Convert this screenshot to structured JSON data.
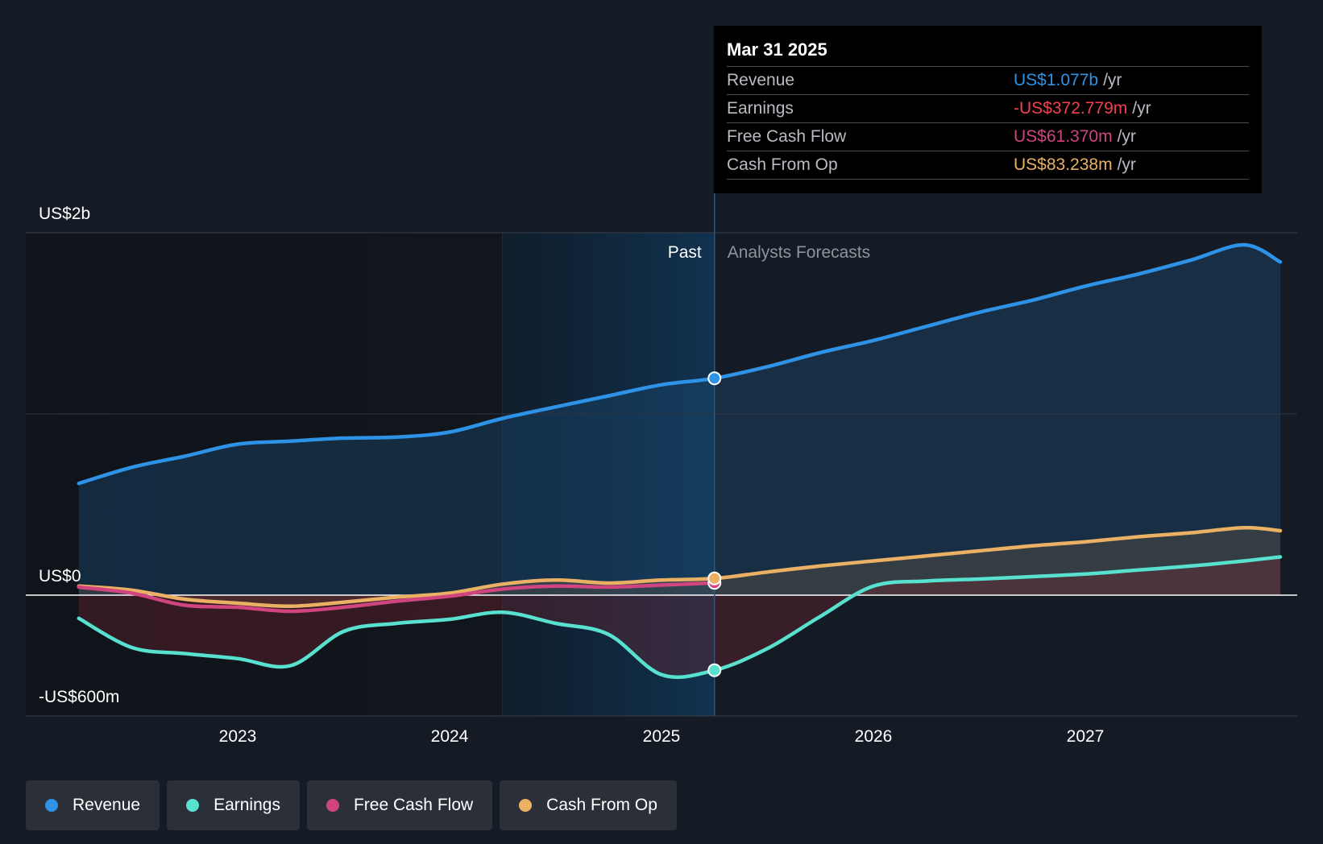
{
  "colors": {
    "background": "#151b24",
    "revenue": "#2e93e6",
    "earnings": "#58e1cf",
    "free_cash_flow": "#d0457f",
    "cash_from_op": "#eab064",
    "forecast_text": "#8e949c",
    "earnings_tooltip": "#f2404f"
  },
  "tooltip": {
    "date": "Mar 31 2025",
    "rows": [
      {
        "name": "Revenue",
        "value": "US$1.077b",
        "unit": "/yr",
        "color": "#2e93e6"
      },
      {
        "name": "Earnings",
        "value": "-US$372.779m",
        "unit": "/yr",
        "color": "#f2404f"
      },
      {
        "name": "Free Cash Flow",
        "value": "US$61.370m",
        "unit": "/yr",
        "color": "#d0457f"
      },
      {
        "name": "Cash From Op",
        "value": "US$83.238m",
        "unit": "/yr",
        "color": "#eab064"
      }
    ]
  },
  "legend": [
    {
      "label": "Revenue",
      "color": "#2e93e6"
    },
    {
      "label": "Earnings",
      "color": "#58e1cf"
    },
    {
      "label": "Free Cash Flow",
      "color": "#d0457f"
    },
    {
      "label": "Cash From Op",
      "color": "#eab064"
    }
  ],
  "chart_data": {
    "type": "line",
    "y_axis_labels": {
      "top": "US$2b",
      "zero": "US$0",
      "bottom": "-US$600m"
    },
    "x_tick_labels": [
      "2023",
      "2024",
      "2025",
      "2026",
      "2027"
    ],
    "x_ticks": [
      2023,
      2024,
      2025,
      2026,
      2027
    ],
    "xlim": [
      2022.0,
      2028.0
    ],
    "ylim": [
      -600,
      1800
    ],
    "past_label": "Past",
    "forecast_label": "Analysts Forecasts",
    "past_end": 2025.25,
    "highlight_start": 2024.25,
    "grid": true,
    "series": [
      {
        "name": "Revenue",
        "key": "revenue",
        "color": "#2e93e6",
        "points": [
          [
            2022.25,
            555
          ],
          [
            2022.5,
            635
          ],
          [
            2022.75,
            690
          ],
          [
            2023.0,
            750
          ],
          [
            2023.25,
            765
          ],
          [
            2023.5,
            780
          ],
          [
            2023.75,
            785
          ],
          [
            2024.0,
            810
          ],
          [
            2024.25,
            878
          ],
          [
            2024.5,
            935
          ],
          [
            2024.75,
            990
          ],
          [
            2025.0,
            1045
          ],
          [
            2025.25,
            1077
          ],
          [
            2025.5,
            1135
          ],
          [
            2025.75,
            1205
          ],
          [
            2026.0,
            1265
          ],
          [
            2026.25,
            1335
          ],
          [
            2026.5,
            1405
          ],
          [
            2026.75,
            1465
          ],
          [
            2027.0,
            1535
          ],
          [
            2027.25,
            1595
          ],
          [
            2027.5,
            1665
          ],
          [
            2027.75,
            1740
          ],
          [
            2028.0,
            1655
          ]
        ]
      },
      {
        "name": "Earnings",
        "key": "earnings",
        "color": "#58e1cf",
        "points": [
          [
            2022.25,
            -115
          ],
          [
            2022.5,
            -260
          ],
          [
            2022.75,
            -290
          ],
          [
            2023.0,
            -315
          ],
          [
            2023.25,
            -350
          ],
          [
            2023.5,
            -180
          ],
          [
            2023.75,
            -140
          ],
          [
            2024.0,
            -120
          ],
          [
            2024.25,
            -85
          ],
          [
            2024.5,
            -140
          ],
          [
            2024.75,
            -195
          ],
          [
            2025.0,
            -395
          ],
          [
            2025.25,
            -373
          ],
          [
            2025.5,
            -265
          ],
          [
            2025.75,
            -105
          ],
          [
            2026.0,
            45
          ],
          [
            2026.25,
            70
          ],
          [
            2026.5,
            80
          ],
          [
            2026.75,
            92
          ],
          [
            2027.0,
            105
          ],
          [
            2027.25,
            125
          ],
          [
            2027.5,
            145
          ],
          [
            2027.75,
            170
          ],
          [
            2028.0,
            190
          ]
        ]
      },
      {
        "name": "Free Cash Flow",
        "key": "free_cash_flow",
        "color": "#d0457f",
        "points": [
          [
            2022.25,
            40
          ],
          [
            2022.5,
            10
          ],
          [
            2022.75,
            -50
          ],
          [
            2023.0,
            -60
          ],
          [
            2023.25,
            -80
          ],
          [
            2023.5,
            -60
          ],
          [
            2023.75,
            -30
          ],
          [
            2024.0,
            -5
          ],
          [
            2024.25,
            30
          ],
          [
            2024.5,
            45
          ],
          [
            2024.75,
            40
          ],
          [
            2025.0,
            50
          ],
          [
            2025.25,
            61
          ]
        ]
      },
      {
        "name": "Cash From Op",
        "key": "cash_from_op",
        "color": "#eab064",
        "points": [
          [
            2022.25,
            45
          ],
          [
            2022.5,
            25
          ],
          [
            2022.75,
            -20
          ],
          [
            2023.0,
            -40
          ],
          [
            2023.25,
            -55
          ],
          [
            2023.5,
            -35
          ],
          [
            2023.75,
            -10
          ],
          [
            2024.0,
            10
          ],
          [
            2024.25,
            55
          ],
          [
            2024.5,
            75
          ],
          [
            2024.75,
            60
          ],
          [
            2025.0,
            75
          ],
          [
            2025.25,
            83
          ],
          [
            2025.5,
            115
          ],
          [
            2025.75,
            145
          ],
          [
            2026.0,
            170
          ],
          [
            2026.25,
            195
          ],
          [
            2026.5,
            220
          ],
          [
            2026.75,
            245
          ],
          [
            2027.0,
            265
          ],
          [
            2027.25,
            290
          ],
          [
            2027.5,
            310
          ],
          [
            2027.75,
            335
          ],
          [
            2028.0,
            320
          ]
        ]
      }
    ]
  }
}
